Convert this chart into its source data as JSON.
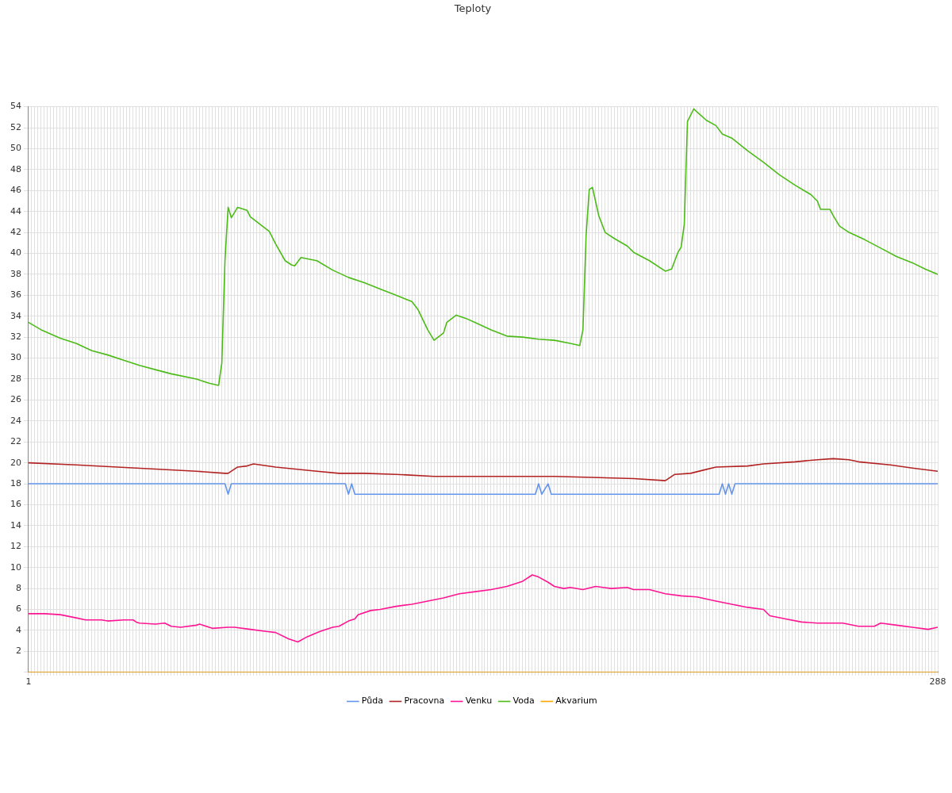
{
  "chart_data": {
    "type": "line",
    "title": "Teploty",
    "xlim": [
      1,
      288
    ],
    "xticks": [
      1,
      {
        "value": 2,
        "label": null
      },
      {
        "value": 3,
        "label": null
      },
      {
        "value": 4,
        "label": null
      },
      {
        "value": 5,
        "label": null
      },
      {
        "value": 6,
        "label": null
      },
      {
        "value": 7,
        "label": null
      },
      {
        "value": 8,
        "label": null
      },
      {
        "value": 9,
        "label": null
      },
      {
        "value": 10,
        "label": null
      },
      {
        "value": 11,
        "label": null
      },
      {
        "value": 12,
        "label": null
      },
      {
        "value": 13,
        "label": null
      },
      {
        "value": 14,
        "label": null
      },
      {
        "value": 15,
        "label": null
      },
      {
        "value": 16,
        "label": null
      },
      {
        "value": 17,
        "label": null
      },
      {
        "value": 18,
        "label": null
      },
      {
        "value": 19,
        "label": null
      },
      {
        "value": 20,
        "label": null
      },
      {
        "value": 21,
        "label": null
      },
      {
        "value": 22,
        "label": null
      },
      {
        "value": 23,
        "label": null
      },
      {
        "value": 24,
        "label": null
      },
      {
        "value": 25,
        "label": null
      },
      {
        "value": 26,
        "label": null
      },
      {
        "value": 27,
        "label": null
      },
      {
        "value": 28,
        "label": null
      },
      {
        "value": 29,
        "label": null
      },
      {
        "value": 30,
        "label": null
      },
      {
        "value": 31,
        "label": null
      },
      {
        "value": 32,
        "label": null
      },
      {
        "value": 33,
        "label": null
      },
      {
        "value": 34,
        "label": null
      },
      {
        "value": 35,
        "label": null
      },
      {
        "value": 36,
        "label": null
      },
      {
        "value": 37,
        "label": null
      },
      {
        "value": 38,
        "label": null
      },
      {
        "value": 39,
        "label": null
      },
      {
        "value": 40,
        "label": null
      },
      {
        "value": 41,
        "label": null
      },
      {
        "value": 42,
        "label": null
      },
      {
        "value": 43,
        "label": null
      },
      {
        "value": 44,
        "label": null
      },
      {
        "value": 45,
        "label": null
      },
      {
        "value": 46,
        "label": null
      },
      {
        "value": 47,
        "label": null
      },
      {
        "value": 48,
        "label": null
      },
      {
        "value": 49,
        "label": null
      },
      {
        "value": 50,
        "label": null
      },
      {
        "value": 51,
        "label": null
      },
      {
        "value": 52,
        "label": null
      },
      {
        "value": 53,
        "label": null
      },
      {
        "value": 54,
        "label": null
      },
      {
        "value": 55,
        "label": null
      },
      {
        "value": 56,
        "label": null
      },
      {
        "value": 57,
        "label": null
      },
      {
        "value": 58,
        "label": null
      },
      {
        "value": 59,
        "label": null
      },
      {
        "value": 60,
        "label": null
      },
      {
        "value": 61,
        "label": null
      },
      {
        "value": 62,
        "label": null
      },
      {
        "value": 63,
        "label": null
      },
      {
        "value": 64,
        "label": null
      },
      {
        "value": 65,
        "label": null
      },
      {
        "value": 66,
        "label": null
      },
      {
        "value": 67,
        "label": null
      },
      {
        "value": 68,
        "label": null
      },
      {
        "value": 69,
        "label": null
      },
      {
        "value": 70,
        "label": null
      },
      {
        "value": 71,
        "label": null
      },
      {
        "value": 72,
        "label": null
      },
      {
        "value": 73,
        "label": null
      },
      {
        "value": 74,
        "label": null
      },
      {
        "value": 75,
        "label": null
      },
      {
        "value": 76,
        "label": null
      },
      {
        "value": 77,
        "label": null
      },
      {
        "value": 78,
        "label": null
      },
      {
        "value": 79,
        "label": null
      },
      {
        "value": 80,
        "label": null
      },
      {
        "value": 81,
        "label": null
      },
      {
        "value": 82,
        "label": null
      },
      {
        "value": 83,
        "label": null
      },
      {
        "value": 84,
        "label": null
      },
      {
        "value": 85,
        "label": null
      },
      {
        "value": 86,
        "label": null
      },
      {
        "value": 87,
        "label": null
      },
      {
        "value": 88,
        "label": null
      },
      {
        "value": 89,
        "label": null
      },
      {
        "value": 90,
        "label": null
      },
      {
        "value": 91,
        "label": null
      },
      {
        "value": 92,
        "label": null
      },
      {
        "value": 93,
        "label": null
      },
      {
        "value": 94,
        "label": null
      },
      {
        "value": 95,
        "label": null
      },
      {
        "value": 96,
        "label": null
      },
      {
        "value": 97,
        "label": null
      },
      {
        "value": 98,
        "label": null
      },
      {
        "value": 99,
        "label": null
      },
      {
        "value": 100,
        "label": null
      },
      {
        "value": 101,
        "label": null
      },
      {
        "value": 102,
        "label": null
      },
      {
        "value": 103,
        "label": null
      },
      {
        "value": 104,
        "label": null
      },
      {
        "value": 105,
        "label": null
      },
      {
        "value": 106,
        "label": null
      },
      {
        "value": 107,
        "label": null
      },
      {
        "value": 108,
        "label": null
      },
      {
        "value": 109,
        "label": null
      },
      {
        "value": 110,
        "label": null
      },
      {
        "value": 111,
        "label": null
      },
      {
        "value": 112,
        "label": null
      },
      {
        "value": 113,
        "label": null
      },
      {
        "value": 114,
        "label": null
      },
      {
        "value": 115,
        "label": null
      },
      {
        "value": 116,
        "label": null
      },
      {
        "value": 117,
        "label": null
      },
      {
        "value": 118,
        "label": null
      },
      {
        "value": 119,
        "label": null
      },
      {
        "value": 120,
        "label": null
      },
      {
        "value": 121,
        "label": null
      },
      {
        "value": 122,
        "label": null
      },
      {
        "value": 123,
        "label": null
      },
      {
        "value": 124,
        "label": null
      },
      {
        "value": 125,
        "label": null
      },
      {
        "value": 126,
        "label": null
      },
      {
        "value": 127,
        "label": null
      },
      {
        "value": 128,
        "label": null
      },
      {
        "value": 129,
        "label": null
      },
      {
        "value": 130,
        "label": null
      },
      {
        "value": 131,
        "label": null
      },
      {
        "value": 132,
        "label": null
      },
      {
        "value": 133,
        "label": null
      },
      {
        "value": 134,
        "label": null
      },
      {
        "value": 135,
        "label": null
      },
      {
        "value": 136,
        "label": null
      },
      {
        "value": 137,
        "label": null
      },
      {
        "value": 138,
        "label": null
      },
      {
        "value": 139,
        "label": null
      },
      {
        "value": 140,
        "label": null
      },
      {
        "value": 141,
        "label": null
      },
      {
        "value": 142,
        "label": null
      },
      {
        "value": 143,
        "label": null
      },
      {
        "value": 144,
        "label": null
      },
      {
        "value": 145,
        "label": null
      },
      {
        "value": 146,
        "label": null
      },
      {
        "value": 147,
        "label": null
      },
      {
        "value": 148,
        "label": null
      },
      {
        "value": 149,
        "label": null
      },
      {
        "value": 150,
        "label": null
      },
      {
        "value": 151,
        "label": null
      },
      {
        "value": 152,
        "label": null
      },
      {
        "value": 153,
        "label": null
      },
      {
        "value": 154,
        "label": null
      },
      {
        "value": 155,
        "label": null
      },
      {
        "value": 156,
        "label": null
      },
      {
        "value": 157,
        "label": null
      },
      {
        "value": 158,
        "label": null
      },
      {
        "value": 159,
        "label": null
      },
      {
        "value": 160,
        "label": null
      },
      {
        "value": 161,
        "label": null
      },
      {
        "value": 162,
        "label": null
      },
      {
        "value": 163,
        "label": null
      },
      {
        "value": 164,
        "label": null
      },
      {
        "value": 165,
        "label": null
      },
      {
        "value": 166,
        "label": null
      },
      {
        "value": 167,
        "label": null
      },
      {
        "value": 168,
        "label": null
      },
      {
        "value": 169,
        "label": null
      },
      {
        "value": 170,
        "label": null
      },
      {
        "value": 171,
        "label": null
      },
      {
        "value": 172,
        "label": null
      },
      {
        "value": 173,
        "label": null
      },
      {
        "value": 174,
        "label": null
      },
      {
        "value": 175,
        "label": null
      },
      {
        "value": 176,
        "label": null
      },
      {
        "value": 177,
        "label": null
      },
      {
        "value": 178,
        "label": null
      },
      {
        "value": 179,
        "label": null
      },
      {
        "value": 180,
        "label": null
      },
      {
        "value": 181,
        "label": null
      },
      {
        "value": 182,
        "label": null
      },
      {
        "value": 183,
        "label": null
      },
      {
        "value": 184,
        "label": null
      },
      {
        "value": 185,
        "label": null
      },
      {
        "value": 186,
        "label": null
      },
      {
        "value": 187,
        "label": null
      },
      {
        "value": 188,
        "label": null
      },
      {
        "value": 189,
        "label": null
      },
      {
        "value": 190,
        "label": null
      },
      {
        "value": 191,
        "label": null
      },
      {
        "value": 192,
        "label": null
      },
      {
        "value": 193,
        "label": null
      },
      {
        "value": 194,
        "label": null
      },
      {
        "value": 195,
        "label": null
      },
      {
        "value": 196,
        "label": null
      },
      {
        "value": 197,
        "label": null
      },
      {
        "value": 198,
        "label": null
      },
      {
        "value": 199,
        "label": null
      },
      {
        "value": 200,
        "label": null
      },
      {
        "value": 201,
        "label": null
      },
      {
        "value": 202,
        "label": null
      },
      {
        "value": 203,
        "label": null
      },
      {
        "value": 204,
        "label": null
      },
      {
        "value": 205,
        "label": null
      },
      {
        "value": 206,
        "label": null
      },
      {
        "value": 207,
        "label": null
      },
      {
        "value": 208,
        "label": null
      },
      {
        "value": 209,
        "label": null
      },
      {
        "value": 210,
        "label": null
      },
      {
        "value": 211,
        "label": null
      },
      {
        "value": 212,
        "label": null
      },
      {
        "value": 213,
        "label": null
      },
      {
        "value": 214,
        "label": null
      },
      {
        "value": 215,
        "label": null
      },
      {
        "value": 216,
        "label": null
      },
      {
        "value": 217,
        "label": null
      },
      {
        "value": 218,
        "label": null
      },
      {
        "value": 219,
        "label": null
      },
      {
        "value": 220,
        "label": null
      },
      {
        "value": 221,
        "label": null
      },
      {
        "value": 222,
        "label": null
      },
      {
        "value": 223,
        "label": null
      },
      {
        "value": 224,
        "label": null
      },
      {
        "value": 225,
        "label": null
      },
      {
        "value": 226,
        "label": null
      },
      {
        "value": 227,
        "label": null
      },
      {
        "value": 228,
        "label": null
      },
      {
        "value": 229,
        "label": null
      },
      {
        "value": 230,
        "label": null
      },
      {
        "value": 231,
        "label": null
      },
      {
        "value": 232,
        "label": null
      },
      {
        "value": 233,
        "label": null
      },
      {
        "value": 234,
        "label": null
      },
      {
        "value": 235,
        "label": null
      },
      {
        "value": 236,
        "label": null
      },
      {
        "value": 237,
        "label": null
      },
      {
        "value": 238,
        "label": null
      },
      {
        "value": 239,
        "label": null
      },
      {
        "value": 240,
        "label": null
      },
      {
        "value": 241,
        "label": null
      },
      {
        "value": 242,
        "label": null
      },
      {
        "value": 243,
        "label": null
      },
      {
        "value": 244,
        "label": null
      },
      {
        "value": 245,
        "label": null
      },
      {
        "value": 246,
        "label": null
      },
      {
        "value": 247,
        "label": null
      },
      {
        "value": 248,
        "label": null
      },
      {
        "value": 249,
        "label": null
      },
      {
        "value": 250,
        "label": null
      },
      {
        "value": 251,
        "label": null
      },
      {
        "value": 252,
        "label": null
      },
      {
        "value": 253,
        "label": null
      },
      {
        "value": 254,
        "label": null
      },
      {
        "value": 255,
        "label": null
      },
      {
        "value": 256,
        "label": null
      },
      {
        "value": 257,
        "label": null
      },
      {
        "value": 258,
        "label": null
      },
      {
        "value": 259,
        "label": null
      },
      {
        "value": 260,
        "label": null
      },
      {
        "value": 261,
        "label": null
      },
      {
        "value": 262,
        "label": null
      },
      {
        "value": 263,
        "label": null
      },
      {
        "value": 264,
        "label": null
      },
      {
        "value": 265,
        "label": null
      },
      {
        "value": 266,
        "label": null
      },
      {
        "value": 267,
        "label": null
      },
      {
        "value": 268,
        "label": null
      },
      {
        "value": 269,
        "label": null
      },
      {
        "value": 270,
        "label": null
      },
      {
        "value": 271,
        "label": null
      },
      {
        "value": 272,
        "label": null
      },
      {
        "value": 273,
        "label": null
      },
      {
        "value": 274,
        "label": null
      },
      {
        "value": 275,
        "label": null
      },
      {
        "value": 276,
        "label": null
      },
      {
        "value": 277,
        "label": null
      },
      {
        "value": 278,
        "label": null
      },
      {
        "value": 279,
        "label": null
      },
      {
        "value": 280,
        "label": null
      },
      {
        "value": 281,
        "label": null
      },
      {
        "value": 282,
        "label": null
      },
      {
        "value": 283,
        "label": null
      },
      {
        "value": 284,
        "label": null
      },
      {
        "value": 285,
        "label": null
      },
      {
        "value": 286,
        "label": null
      },
      {
        "value": 287,
        "label": null
      },
      288
    ],
    "ylim": [
      0,
      54
    ],
    "yticks": [
      {
        "value": 0,
        "label": null
      },
      2,
      4,
      6,
      8,
      10,
      12,
      14,
      16,
      18,
      20,
      22,
      24,
      26,
      28,
      30,
      32,
      34,
      36,
      38,
      40,
      42,
      44,
      46,
      48,
      50,
      52,
      54
    ],
    "grid": true,
    "legend": "bottom",
    "marker": "none",
    "line_style": "solid",
    "series": [
      {
        "name": "Půda",
        "color": "#6495ed",
        "x": [
          1,
          63,
          64,
          65,
          101,
          102,
          103,
          104,
          161,
          162,
          163,
          165,
          166,
          219,
          220,
          221,
          222,
          223,
          224,
          288
        ],
        "values": [
          18,
          18,
          17,
          18,
          18,
          17,
          18,
          17,
          17,
          18,
          17,
          18,
          17,
          17,
          18,
          17,
          18,
          17,
          18,
          18
        ]
      },
      {
        "name": "Pracovna",
        "color": "#b22222",
        "x": [
          1,
          16,
          29,
          41,
          54,
          63,
          64,
          67,
          70,
          72,
          79,
          92,
          99,
          107,
          117,
          129,
          167,
          192,
          202,
          205,
          210,
          214,
          218,
          228,
          233,
          243,
          250,
          255,
          260,
          263,
          273,
          280,
          288
        ],
        "values": [
          20.0,
          19.8,
          19.6,
          19.4,
          19.2,
          19.0,
          19.0,
          19.6,
          19.7,
          19.9,
          19.6,
          19.2,
          19.0,
          19.0,
          18.9,
          18.7,
          18.7,
          18.5,
          18.3,
          18.9,
          19.0,
          19.3,
          19.6,
          19.7,
          19.9,
          20.1,
          20.3,
          20.4,
          20.3,
          20.1,
          19.8,
          19.5,
          19.2
        ]
      },
      {
        "name": "Venku",
        "color": "#ff1493",
        "x": [
          1,
          6,
          11,
          16,
          19,
          24,
          26,
          31,
          34,
          35,
          36,
          41,
          44,
          46,
          49,
          54,
          55,
          59,
          64,
          66,
          71,
          76,
          79,
          83,
          86,
          89,
          93,
          97,
          99,
          102,
          104,
          105,
          109,
          112,
          117,
          122,
          127,
          132,
          137,
          142,
          147,
          152,
          157,
          160,
          162,
          165,
          167,
          170,
          172,
          176,
          180,
          185,
          190,
          192,
          197,
          202,
          207,
          212,
          218,
          223,
          228,
          233,
          235,
          240,
          245,
          250,
          253,
          258,
          263,
          268,
          270,
          275,
          280,
          285,
          288
        ],
        "values": [
          5.6,
          5.6,
          5.5,
          5.2,
          5.0,
          5.0,
          4.9,
          5.0,
          5.0,
          4.8,
          4.7,
          4.6,
          4.7,
          4.4,
          4.3,
          4.5,
          4.6,
          4.2,
          4.3,
          4.3,
          4.1,
          3.9,
          3.8,
          3.2,
          2.9,
          3.4,
          3.9,
          4.3,
          4.4,
          4.9,
          5.1,
          5.5,
          5.9,
          6.0,
          6.3,
          6.5,
          6.8,
          7.1,
          7.5,
          7.7,
          7.9,
          8.2,
          8.7,
          9.3,
          9.1,
          8.6,
          8.2,
          8.0,
          8.1,
          7.9,
          8.2,
          8.0,
          8.1,
          7.9,
          7.9,
          7.5,
          7.3,
          7.2,
          6.8,
          6.5,
          6.2,
          6.0,
          5.4,
          5.1,
          4.8,
          4.7,
          4.7,
          4.7,
          4.4,
          4.4,
          4.7,
          4.5,
          4.3,
          4.1,
          4.3
        ]
      },
      {
        "name": "Voda",
        "color": "#4cbb17",
        "x": [
          1,
          5,
          11,
          16,
          21,
          26,
          31,
          36,
          41,
          46,
          54,
          58,
          61,
          62,
          63,
          64,
          65,
          67,
          70,
          71,
          74,
          77,
          79,
          82,
          84,
          85,
          87,
          92,
          97,
          102,
          107,
          112,
          117,
          122,
          124,
          127,
          129,
          132,
          133,
          136,
          139,
          142,
          147,
          152,
          157,
          162,
          167,
          172,
          175,
          176,
          177,
          178,
          179,
          181,
          183,
          186,
          190,
          192,
          197,
          202,
          204,
          206,
          207,
          208,
          209,
          211,
          212,
          215,
          218,
          220,
          223,
          228,
          233,
          238,
          243,
          248,
          250,
          251,
          254,
          255,
          257,
          260,
          265,
          270,
          275,
          280,
          284,
          288
        ],
        "values": [
          33.4,
          32.7,
          31.9,
          31.4,
          30.7,
          30.3,
          29.8,
          29.3,
          28.9,
          28.5,
          28.0,
          27.6,
          27.4,
          29.5,
          39.3,
          44.4,
          43.4,
          44.4,
          44.1,
          43.5,
          42.8,
          42.1,
          40.9,
          39.3,
          38.9,
          38.8,
          39.6,
          39.3,
          38.4,
          37.7,
          37.2,
          36.6,
          36.0,
          35.4,
          34.6,
          32.7,
          31.7,
          32.4,
          33.4,
          34.1,
          33.8,
          33.4,
          32.7,
          32.1,
          32.0,
          31.8,
          31.7,
          31.4,
          31.2,
          32.7,
          41.7,
          46.1,
          46.3,
          43.6,
          42.0,
          41.4,
          40.7,
          40.1,
          39.3,
          38.3,
          38.5,
          40.1,
          40.6,
          42.8,
          52.6,
          53.8,
          53.5,
          52.7,
          52.2,
          51.4,
          51.0,
          49.8,
          48.7,
          47.5,
          46.5,
          45.6,
          45.0,
          44.2,
          44.2,
          43.6,
          42.6,
          42.0,
          41.3,
          40.5,
          39.7,
          39.1,
          38.5,
          38.0
        ]
      },
      {
        "name": "Akvarium",
        "color": "#ffa500",
        "x": [
          1,
          288
        ],
        "values": [
          0,
          0
        ]
      }
    ]
  }
}
